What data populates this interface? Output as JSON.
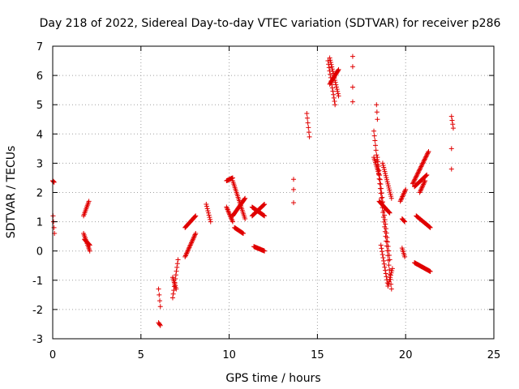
{
  "chart_data": {
    "type": "scatter",
    "title": "Day 218 of 2022, Sidereal Day-to-day VTEC variation (SDTVAR) for receiver p286",
    "xlabel": "GPS time / hours",
    "ylabel": "SDTVAR / TECUs",
    "xlim": [
      0,
      25
    ],
    "ylim": [
      -3,
      7
    ],
    "xticks": [
      0,
      5,
      10,
      15,
      20,
      25
    ],
    "yticks": [
      -3,
      -2,
      -1,
      0,
      1,
      2,
      3,
      4,
      5,
      6,
      7
    ],
    "grid": true,
    "marker": "+",
    "color": "#e00000",
    "segments": [
      {
        "x0": 0.0,
        "x1": 0.08,
        "y0": 2.4,
        "y1": 2.35
      },
      {
        "x0": 0.02,
        "x1": 0.1,
        "y0": 1.2,
        "y1": 0.6
      },
      {
        "x0": 1.75,
        "x1": 2.05,
        "y0": 1.2,
        "y1": 1.7
      },
      {
        "x0": 1.75,
        "x1": 2.1,
        "y0": 0.6,
        "y1": 0.0
      },
      {
        "x0": 1.8,
        "x1": 2.1,
        "y0": 0.4,
        "y1": 0.2
      },
      {
        "x0": 6.0,
        "x1": 6.1,
        "y0": -1.3,
        "y1": -1.9
      },
      {
        "x0": 6.0,
        "x1": 6.1,
        "y0": -2.45,
        "y1": -2.55
      },
      {
        "x0": 6.8,
        "x1": 7.1,
        "y0": -1.6,
        "y1": -0.3
      },
      {
        "x0": 6.8,
        "x1": 7.0,
        "y0": -0.9,
        "y1": -1.3
      },
      {
        "x0": 7.5,
        "x1": 8.1,
        "y0": -0.2,
        "y1": 0.6
      },
      {
        "x0": 7.5,
        "x1": 8.1,
        "y0": 0.8,
        "y1": 1.2
      },
      {
        "x0": 8.7,
        "x1": 8.95,
        "y0": 1.6,
        "y1": 1.0
      },
      {
        "x0": 9.85,
        "x1": 10.2,
        "y0": 2.4,
        "y1": 2.5
      },
      {
        "x0": 9.85,
        "x1": 10.2,
        "y0": 1.5,
        "y1": 1.0
      },
      {
        "x0": 10.2,
        "x1": 10.9,
        "y0": 2.4,
        "y1": 1.1
      },
      {
        "x0": 10.2,
        "x1": 10.9,
        "y0": 1.2,
        "y1": 1.8
      },
      {
        "x0": 10.3,
        "x1": 10.8,
        "y0": 0.8,
        "y1": 0.6
      },
      {
        "x0": 11.3,
        "x1": 12.0,
        "y0": 1.5,
        "y1": 1.2
      },
      {
        "x0": 11.3,
        "x1": 12.0,
        "y0": 1.2,
        "y1": 1.6
      },
      {
        "x0": 11.4,
        "x1": 12.0,
        "y0": 0.15,
        "y1": 0.0
      },
      {
        "x0": 13.65,
        "x1": 13.65,
        "y0": 2.45,
        "y1": 2.45
      },
      {
        "x0": 13.65,
        "x1": 13.65,
        "y0": 2.1,
        "y1": 2.1
      },
      {
        "x0": 13.65,
        "x1": 13.65,
        "y0": 1.65,
        "y1": 1.5
      },
      {
        "x0": 14.4,
        "x1": 14.55,
        "y0": 4.7,
        "y1": 3.9
      },
      {
        "x0": 15.6,
        "x1": 16.0,
        "y0": 6.5,
        "y1": 5.0
      },
      {
        "x0": 15.7,
        "x1": 16.2,
        "y0": 6.6,
        "y1": 5.3
      },
      {
        "x0": 15.7,
        "x1": 16.2,
        "y0": 5.7,
        "y1": 6.2
      },
      {
        "x0": 17.0,
        "x1": 17.0,
        "y0": 6.65,
        "y1": 6.65
      },
      {
        "x0": 17.0,
        "x1": 17.0,
        "y0": 6.3,
        "y1": 6.3
      },
      {
        "x0": 17.0,
        "x1": 17.0,
        "y0": 5.6,
        "y1": 5.6
      },
      {
        "x0": 17.0,
        "x1": 17.0,
        "y0": 5.1,
        "y1": 5.1
      },
      {
        "x0": 18.2,
        "x1": 19.2,
        "y0": 4.1,
        "y1": -1.3
      },
      {
        "x0": 18.4,
        "x1": 19.1,
        "y0": 3.2,
        "y1": -0.3
      },
      {
        "x0": 18.2,
        "x1": 18.5,
        "y0": 3.2,
        "y1": 2.6
      },
      {
        "x0": 18.35,
        "x1": 18.4,
        "y0": 5.0,
        "y1": 4.5
      },
      {
        "x0": 18.7,
        "x1": 19.2,
        "y0": 3.0,
        "y1": 1.8
      },
      {
        "x0": 18.5,
        "x1": 19.1,
        "y0": 1.7,
        "y1": 1.3
      },
      {
        "x0": 18.6,
        "x1": 19.0,
        "y0": 0.2,
        "y1": -1.2
      },
      {
        "x0": 19.0,
        "x1": 19.25,
        "y0": -1.2,
        "y1": -0.6
      },
      {
        "x0": 19.7,
        "x1": 20.0,
        "y0": 1.7,
        "y1": 2.1
      },
      {
        "x0": 19.8,
        "x1": 19.95,
        "y0": 1.1,
        "y1": 1.0
      },
      {
        "x0": 19.8,
        "x1": 19.95,
        "y0": 0.1,
        "y1": -0.2
      },
      {
        "x0": 20.4,
        "x1": 21.3,
        "y0": 2.3,
        "y1": 3.4
      },
      {
        "x0": 20.5,
        "x1": 21.2,
        "y0": 2.2,
        "y1": 2.6
      },
      {
        "x0": 20.8,
        "x1": 21.1,
        "y0": 2.0,
        "y1": 2.4
      },
      {
        "x0": 20.6,
        "x1": 21.4,
        "y0": 1.2,
        "y1": 0.8
      },
      {
        "x0": 20.5,
        "x1": 21.4,
        "y0": -0.4,
        "y1": -0.7
      },
      {
        "x0": 22.6,
        "x1": 22.7,
        "y0": 4.6,
        "y1": 4.2
      },
      {
        "x0": 22.6,
        "x1": 22.6,
        "y0": 3.5,
        "y1": 3.5
      },
      {
        "x0": 22.6,
        "x1": 22.6,
        "y0": 2.8,
        "y1": 2.8
      }
    ]
  }
}
